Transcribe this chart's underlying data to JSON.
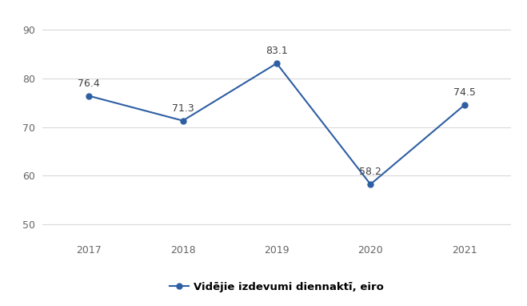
{
  "years": [
    2017,
    2018,
    2019,
    2020,
    2021
  ],
  "values": [
    76.4,
    71.3,
    83.1,
    58.2,
    74.5
  ],
  "line_color": "#2e5fa3",
  "marker_style": "o",
  "marker_size": 5,
  "line_width": 1.5,
  "ylim": [
    47,
    93
  ],
  "yticks": [
    50,
    60,
    70,
    80,
    90
  ],
  "xlim": [
    2016.5,
    2021.5
  ],
  "legend_label": "Vidējie izdevumi diennaktī, eiro",
  "background_color": "#ffffff",
  "grid_color": "#d9d9d9",
  "tick_label_fontsize": 9,
  "annotation_fontsize": 9,
  "legend_fontsize": 9.5
}
